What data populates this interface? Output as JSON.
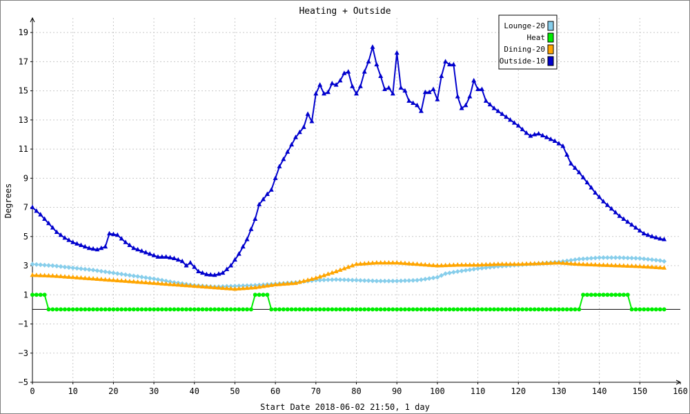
{
  "chart_data": {
    "type": "line",
    "title": "Heating + Outside",
    "xlabel": "Start Date 2018-06-02 21:50, 1 day",
    "ylabel": "Degrees",
    "xlim": [
      0,
      160
    ],
    "ylim": [
      -5,
      20
    ],
    "xticks": [
      0,
      10,
      20,
      30,
      40,
      50,
      60,
      70,
      80,
      90,
      100,
      110,
      120,
      130,
      140,
      150,
      160
    ],
    "yticks": [
      -5,
      -3,
      -1,
      1,
      3,
      5,
      7,
      9,
      11,
      13,
      15,
      17,
      19
    ],
    "grid": true,
    "legend_position": "top-right",
    "series": [
      {
        "name": "Lounge-20",
        "color": "#87CEEB",
        "marker": "diamond",
        "points": [
          [
            0,
            3.1
          ],
          [
            5,
            3.0
          ],
          [
            10,
            2.85
          ],
          [
            15,
            2.7
          ],
          [
            20,
            2.5
          ],
          [
            25,
            2.3
          ],
          [
            30,
            2.1
          ],
          [
            35,
            1.85
          ],
          [
            40,
            1.65
          ],
          [
            45,
            1.55
          ],
          [
            50,
            1.6
          ],
          [
            55,
            1.65
          ],
          [
            60,
            1.75
          ],
          [
            65,
            1.85
          ],
          [
            70,
            2.0
          ],
          [
            75,
            2.05
          ],
          [
            80,
            2.0
          ],
          [
            85,
            1.95
          ],
          [
            90,
            1.95
          ],
          [
            95,
            2.0
          ],
          [
            100,
            2.2
          ],
          [
            102,
            2.45
          ],
          [
            105,
            2.6
          ],
          [
            110,
            2.8
          ],
          [
            115,
            2.95
          ],
          [
            120,
            3.05
          ],
          [
            125,
            3.15
          ],
          [
            130,
            3.25
          ],
          [
            135,
            3.45
          ],
          [
            140,
            3.55
          ],
          [
            145,
            3.55
          ],
          [
            150,
            3.5
          ],
          [
            155,
            3.35
          ],
          [
            156,
            3.3
          ]
        ]
      },
      {
        "name": "Heat",
        "color": "#00EE00",
        "marker": "circle",
        "points": [
          [
            0,
            1
          ],
          [
            3,
            1
          ],
          [
            4,
            0
          ],
          [
            54,
            0
          ],
          [
            55,
            1
          ],
          [
            58,
            1
          ],
          [
            59,
            0
          ],
          [
            135,
            0
          ],
          [
            136,
            1
          ],
          [
            147,
            1
          ],
          [
            148,
            0
          ],
          [
            156,
            0
          ]
        ]
      },
      {
        "name": "Dining-20",
        "color": "#FFA500",
        "marker": "triangle",
        "points": [
          [
            0,
            2.35
          ],
          [
            5,
            2.3
          ],
          [
            10,
            2.2
          ],
          [
            15,
            2.1
          ],
          [
            20,
            2.0
          ],
          [
            25,
            1.9
          ],
          [
            30,
            1.8
          ],
          [
            35,
            1.7
          ],
          [
            40,
            1.6
          ],
          [
            45,
            1.5
          ],
          [
            50,
            1.4
          ],
          [
            55,
            1.5
          ],
          [
            60,
            1.7
          ],
          [
            65,
            1.8
          ],
          [
            70,
            2.15
          ],
          [
            75,
            2.6
          ],
          [
            80,
            3.1
          ],
          [
            85,
            3.2
          ],
          [
            90,
            3.2
          ],
          [
            95,
            3.1
          ],
          [
            100,
            3.0
          ],
          [
            105,
            3.05
          ],
          [
            110,
            3.05
          ],
          [
            115,
            3.1
          ],
          [
            120,
            3.1
          ],
          [
            125,
            3.15
          ],
          [
            130,
            3.2
          ],
          [
            135,
            3.1
          ],
          [
            140,
            3.05
          ],
          [
            145,
            3.0
          ],
          [
            150,
            2.95
          ],
          [
            156,
            2.85
          ]
        ]
      },
      {
        "name": "Outside-10",
        "color": "#0000CD",
        "marker": "triangle",
        "points": [
          [
            0,
            7.0
          ],
          [
            2,
            6.5
          ],
          [
            4,
            5.9
          ],
          [
            6,
            5.3
          ],
          [
            8,
            4.9
          ],
          [
            10,
            4.6
          ],
          [
            12,
            4.4
          ],
          [
            14,
            4.2
          ],
          [
            16,
            4.1
          ],
          [
            18,
            4.3
          ],
          [
            19,
            5.2
          ],
          [
            21,
            5.1
          ],
          [
            23,
            4.6
          ],
          [
            25,
            4.2
          ],
          [
            27,
            4.0
          ],
          [
            29,
            3.8
          ],
          [
            31,
            3.6
          ],
          [
            33,
            3.6
          ],
          [
            35,
            3.5
          ],
          [
            37,
            3.3
          ],
          [
            38,
            3.0
          ],
          [
            39,
            3.2
          ],
          [
            41,
            2.6
          ],
          [
            43,
            2.4
          ],
          [
            45,
            2.35
          ],
          [
            47,
            2.5
          ],
          [
            49,
            3.0
          ],
          [
            51,
            3.8
          ],
          [
            53,
            4.8
          ],
          [
            55,
            6.2
          ],
          [
            56,
            7.2
          ],
          [
            58,
            7.9
          ],
          [
            59,
            8.2
          ],
          [
            61,
            9.8
          ],
          [
            63,
            10.8
          ],
          [
            65,
            11.8
          ],
          [
            67,
            12.5
          ],
          [
            68,
            13.4
          ],
          [
            69,
            12.9
          ],
          [
            70,
            14.8
          ],
          [
            71,
            15.4
          ],
          [
            72,
            14.8
          ],
          [
            73,
            14.9
          ],
          [
            74,
            15.5
          ],
          [
            75,
            15.4
          ],
          [
            76,
            15.7
          ],
          [
            77,
            16.2
          ],
          [
            78,
            16.3
          ],
          [
            79,
            15.3
          ],
          [
            80,
            14.8
          ],
          [
            81,
            15.3
          ],
          [
            82,
            16.3
          ],
          [
            83,
            17.0
          ],
          [
            84,
            18.0
          ],
          [
            85,
            16.8
          ],
          [
            86,
            16.0
          ],
          [
            87,
            15.1
          ],
          [
            88,
            15.2
          ],
          [
            89,
            14.8
          ],
          [
            90,
            17.6
          ],
          [
            91,
            15.2
          ],
          [
            92,
            15.0
          ],
          [
            93,
            14.3
          ],
          [
            95,
            14.0
          ],
          [
            96,
            13.6
          ],
          [
            97,
            14.9
          ],
          [
            98,
            14.9
          ],
          [
            99,
            15.1
          ],
          [
            100,
            14.4
          ],
          [
            101,
            16.0
          ],
          [
            102,
            17.0
          ],
          [
            103,
            16.8
          ],
          [
            104,
            16.8
          ],
          [
            105,
            14.6
          ],
          [
            106,
            13.8
          ],
          [
            107,
            14.0
          ],
          [
            108,
            14.6
          ],
          [
            109,
            15.7
          ],
          [
            110,
            15.1
          ],
          [
            111,
            15.1
          ],
          [
            112,
            14.3
          ],
          [
            114,
            13.8
          ],
          [
            116,
            13.4
          ],
          [
            118,
            13.0
          ],
          [
            120,
            12.6
          ],
          [
            122,
            12.1
          ],
          [
            123,
            11.9
          ],
          [
            124,
            12.0
          ],
          [
            125,
            12.05
          ],
          [
            127,
            11.8
          ],
          [
            129,
            11.55
          ],
          [
            131,
            11.2
          ],
          [
            133,
            10.0
          ],
          [
            135,
            9.4
          ],
          [
            137,
            8.7
          ],
          [
            139,
            8.0
          ],
          [
            141,
            7.4
          ],
          [
            143,
            6.9
          ],
          [
            145,
            6.4
          ],
          [
            147,
            6.0
          ],
          [
            149,
            5.6
          ],
          [
            151,
            5.2
          ],
          [
            153,
            5.0
          ],
          [
            155,
            4.85
          ],
          [
            156,
            4.8
          ]
        ]
      }
    ]
  }
}
